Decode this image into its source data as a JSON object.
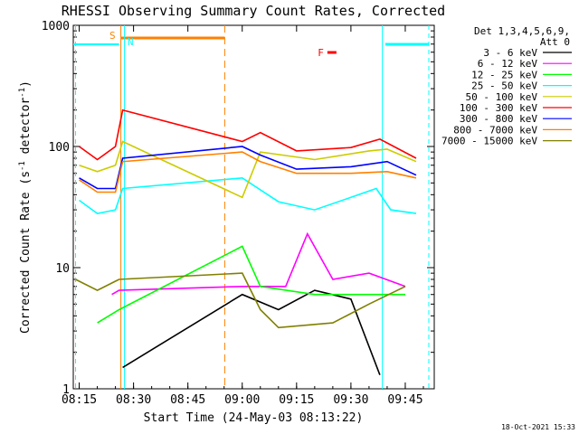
{
  "chart_data": {
    "type": "line",
    "title": "RHESSI Observing Summary Count Rates, Corrected",
    "ylabel": "Corrected Count Rate (s",
    "ylabel_sup1": "-1",
    "ylabel_mid": " detector",
    "ylabel_sup2": "-1",
    "ylabel_end": ")",
    "xlabel": "Start Time (24-May-03 08:13:22)",
    "y_scale": "log",
    "ylim": [
      1,
      1000
    ],
    "xlim": [
      "08:13:22",
      "09:53:00"
    ],
    "y_ticks": [
      "1",
      "10",
      "100",
      "1000"
    ],
    "x_ticks": [
      "08:15",
      "08:30",
      "08:45",
      "09:00",
      "09:15",
      "09:30",
      "09:45"
    ],
    "grid": false,
    "legend_position": "top-right",
    "legend_header": [
      "Det 1,3,4,5,6,9,",
      "Att 0"
    ],
    "markers": [
      {
        "text": "S",
        "color": "#ff8000",
        "x": "08:26:30"
      },
      {
        "text": "N",
        "color": "#00ffff",
        "x": "08:26:50"
      },
      {
        "text": "F",
        "color": "#ff0000",
        "x": "09:24:00"
      }
    ],
    "timestamp": "18-Oct-2021 15:33",
    "series": [
      {
        "name": "3 - 6 keV",
        "color": "#000000",
        "values": [
          {
            "t": "08:27",
            "y": 1.5
          },
          {
            "t": "09:00",
            "y": 6
          },
          {
            "t": "09:10",
            "y": 4.5
          },
          {
            "t": "09:20",
            "y": 6.5
          },
          {
            "t": "09:30",
            "y": 5.5
          },
          {
            "t": "09:38",
            "y": 1.3
          }
        ]
      },
      {
        "name": "6 - 12 keV",
        "color": "#ff00ff",
        "values": [
          {
            "t": "08:24",
            "y": 6
          },
          {
            "t": "08:26",
            "y": 6.5
          },
          {
            "t": "09:00",
            "y": 7
          },
          {
            "t": "09:12",
            "y": 7
          },
          {
            "t": "09:18",
            "y": 19
          },
          {
            "t": "09:25",
            "y": 8
          },
          {
            "t": "09:35",
            "y": 9
          },
          {
            "t": "09:45",
            "y": 7
          }
        ]
      },
      {
        "name": "12 - 25 keV",
        "color": "#00ff00",
        "values": [
          {
            "t": "08:20",
            "y": 3.5
          },
          {
            "t": "08:26",
            "y": 4.5
          },
          {
            "t": "09:00",
            "y": 15
          },
          {
            "t": "09:05",
            "y": 7
          },
          {
            "t": "09:20",
            "y": 6
          },
          {
            "t": "09:35",
            "y": 6
          },
          {
            "t": "09:45",
            "y": 6
          }
        ]
      },
      {
        "name": "25 - 50 keV",
        "color": "#00ffff",
        "values": [
          {
            "t": "08:15",
            "y": 36
          },
          {
            "t": "08:20",
            "y": 28
          },
          {
            "t": "08:25",
            "y": 30
          },
          {
            "t": "08:27",
            "y": 45
          },
          {
            "t": "09:00",
            "y": 55
          },
          {
            "t": "09:10",
            "y": 35
          },
          {
            "t": "09:20",
            "y": 30
          },
          {
            "t": "09:30",
            "y": 38
          },
          {
            "t": "09:37",
            "y": 45
          },
          {
            "t": "09:41",
            "y": 30
          },
          {
            "t": "09:48",
            "y": 28
          }
        ]
      },
      {
        "name": "50 - 100 keV",
        "color": "#cccc00",
        "values": [
          {
            "t": "08:15",
            "y": 70
          },
          {
            "t": "08:20",
            "y": 62
          },
          {
            "t": "08:25",
            "y": 70
          },
          {
            "t": "08:27",
            "y": 110
          },
          {
            "t": "09:00",
            "y": 38
          },
          {
            "t": "09:05",
            "y": 90
          },
          {
            "t": "09:20",
            "y": 78
          },
          {
            "t": "09:35",
            "y": 92
          },
          {
            "t": "09:40",
            "y": 95
          },
          {
            "t": "09:48",
            "y": 75
          }
        ]
      },
      {
        "name": "100 - 300 keV",
        "color": "#ff0000",
        "values": [
          {
            "t": "08:15",
            "y": 100
          },
          {
            "t": "08:20",
            "y": 78
          },
          {
            "t": "08:25",
            "y": 100
          },
          {
            "t": "08:27",
            "y": 200
          },
          {
            "t": "09:00",
            "y": 110
          },
          {
            "t": "09:05",
            "y": 130
          },
          {
            "t": "09:15",
            "y": 92
          },
          {
            "t": "09:30",
            "y": 98
          },
          {
            "t": "09:38",
            "y": 115
          },
          {
            "t": "09:48",
            "y": 80
          }
        ]
      },
      {
        "name": "300 - 800 keV",
        "color": "#0000ff",
        "values": [
          {
            "t": "08:15",
            "y": 55
          },
          {
            "t": "08:20",
            "y": 45
          },
          {
            "t": "08:25",
            "y": 45
          },
          {
            "t": "08:27",
            "y": 80
          },
          {
            "t": "09:00",
            "y": 100
          },
          {
            "t": "09:05",
            "y": 85
          },
          {
            "t": "09:15",
            "y": 65
          },
          {
            "t": "09:30",
            "y": 68
          },
          {
            "t": "09:40",
            "y": 75
          },
          {
            "t": "09:48",
            "y": 58
          }
        ]
      },
      {
        "name": "800 - 7000 keV",
        "color": "#ff8000",
        "values": [
          {
            "t": "08:15",
            "y": 53
          },
          {
            "t": "08:20",
            "y": 42
          },
          {
            "t": "08:25",
            "y": 42
          },
          {
            "t": "08:27",
            "y": 75
          },
          {
            "t": "09:00",
            "y": 90
          },
          {
            "t": "09:05",
            "y": 75
          },
          {
            "t": "09:15",
            "y": 60
          },
          {
            "t": "09:30",
            "y": 60
          },
          {
            "t": "09:40",
            "y": 62
          },
          {
            "t": "09:48",
            "y": 55
          }
        ]
      },
      {
        "name": "7000 - 15000 keV",
        "color": "#808000",
        "values": [
          {
            "t": "08:14",
            "y": 8
          },
          {
            "t": "08:20",
            "y": 6.5
          },
          {
            "t": "08:26",
            "y": 8
          },
          {
            "t": "09:00",
            "y": 9
          },
          {
            "t": "09:05",
            "y": 4.5
          },
          {
            "t": "09:10",
            "y": 3.2
          },
          {
            "t": "09:25",
            "y": 3.5
          },
          {
            "t": "09:35",
            "y": 5
          },
          {
            "t": "09:45",
            "y": 7
          }
        ]
      }
    ]
  }
}
